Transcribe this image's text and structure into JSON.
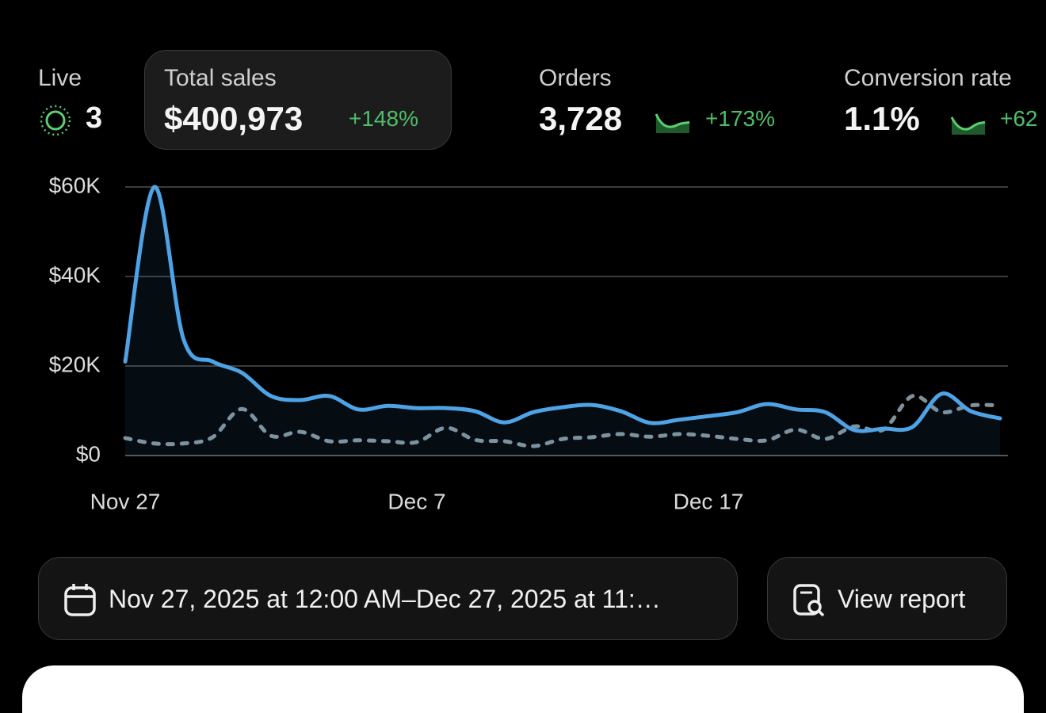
{
  "live": {
    "label": "Live",
    "value": "3"
  },
  "metrics": [
    {
      "label": "Total sales",
      "value": "$400,973",
      "change": "+148%"
    },
    {
      "label": "Orders",
      "value": "3,728",
      "change": "+173%"
    },
    {
      "label": "Conversion rate",
      "value": "1.1%",
      "change": "+62"
    }
  ],
  "chart_data": {
    "type": "line",
    "categories": [
      "Nov 27",
      null,
      null,
      null,
      null,
      null,
      null,
      null,
      null,
      null,
      "Dec 7",
      null,
      null,
      null,
      null,
      null,
      null,
      null,
      null,
      null,
      "Dec 17",
      null,
      null,
      null,
      null,
      null,
      null,
      null,
      null,
      null,
      null
    ],
    "series": [
      {
        "color": "#4ea3e6",
        "style": "solid",
        "values": [
          21000,
          60000,
          26000,
          21000,
          18500,
          13300,
          12400,
          13300,
          10300,
          11100,
          10600,
          10600,
          9900,
          7400,
          9700,
          10800,
          11300,
          9900,
          7300,
          8000,
          8800,
          9700,
          11500,
          10300,
          9700,
          5700,
          6000,
          6400,
          13800,
          9900,
          8300
        ]
      },
      {
        "color": "#7f929c",
        "style": "dashed",
        "values": [
          3900,
          2700,
          2700,
          4100,
          10400,
          4400,
          5300,
          3200,
          3400,
          3200,
          3000,
          6200,
          3500,
          3200,
          2100,
          3700,
          4100,
          4800,
          4200,
          4800,
          4400,
          3700,
          3400,
          5800,
          3700,
          6500,
          5800,
          13300,
          9700,
          11200,
          11200
        ]
      }
    ],
    "ylim": [
      0,
      60000
    ],
    "yticks": [
      {
        "value": 0,
        "label": "$0"
      },
      {
        "value": 20000,
        "label": "$20K"
      },
      {
        "value": 40000,
        "label": "$40K"
      },
      {
        "value": 60000,
        "label": "$60K"
      }
    ],
    "grid": true
  },
  "buttons": {
    "date_range": "Nov 27, 2025 at 12:00 AM–Dec 27, 2025 at 11:…",
    "report": "View report"
  }
}
